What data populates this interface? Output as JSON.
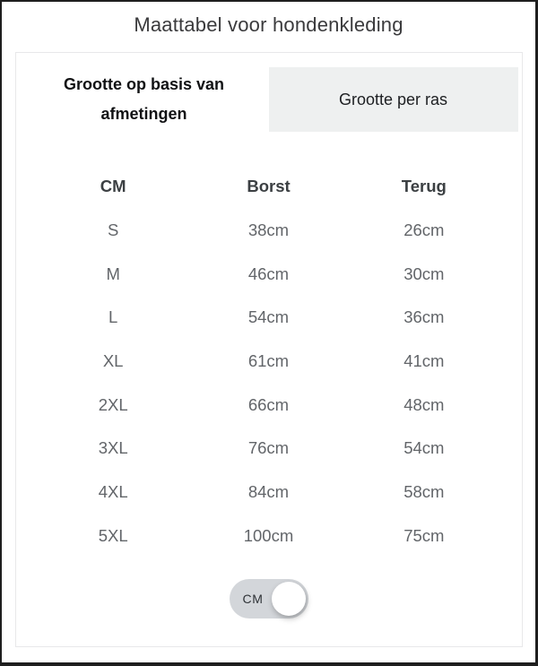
{
  "page": {
    "title": "Maattabel voor hondenkleding"
  },
  "tabs": [
    {
      "label": "Grootte op basis van afmetingen",
      "active": true
    },
    {
      "label": "Grootte per ras",
      "active": false
    }
  ],
  "table": {
    "columns": [
      "CM",
      "Borst",
      "Terug"
    ],
    "rows": [
      [
        "S",
        "38cm",
        "26cm"
      ],
      [
        "M",
        "46cm",
        "30cm"
      ],
      [
        "L",
        "54cm",
        "36cm"
      ],
      [
        "XL",
        "61cm",
        "41cm"
      ],
      [
        "2XL",
        "66cm",
        "48cm"
      ],
      [
        "3XL",
        "76cm",
        "54cm"
      ],
      [
        "4XL",
        "84cm",
        "58cm"
      ],
      [
        "5XL",
        "100cm",
        "75cm"
      ]
    ]
  },
  "unit_toggle": {
    "label": "CM",
    "selected_unit": "CM"
  },
  "colors": {
    "frame_border": "#1e1e1e",
    "card_border": "#e8e8ea",
    "tab_inactive_bg": "#eef0f0",
    "text_primary": "#3c4043",
    "text_secondary": "#626569",
    "toggle_track": "#d3d6da",
    "toggle_knob": "#ffffff"
  }
}
